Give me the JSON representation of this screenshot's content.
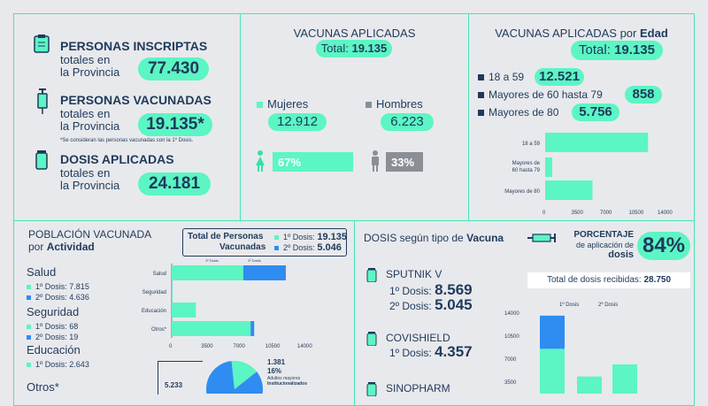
{
  "summary": {
    "inscriptas": {
      "title": "PERSONAS INSCRIPTAS",
      "sub1": "totales en",
      "sub2": "la Provincia",
      "value": "77.430"
    },
    "vacunadas": {
      "title": "PERSONAS VACUNADAS",
      "sub1": "totales en",
      "sub2": "la Provincia",
      "value": "19.135*",
      "note": "*Se consideran las personas vacunadas con la 1º Dosis."
    },
    "dosis": {
      "title": "DOSIS APLICADAS",
      "sub1": "totales en",
      "sub2": "la Provincia",
      "value": "24.181"
    }
  },
  "vacunas_aplicadas": {
    "title": "VACUNAS APLICADAS",
    "total_label": "Total:",
    "total_value": "19.135",
    "mujeres_label": "Mujeres",
    "mujeres_value": "12.912",
    "hombres_label": "Hombres",
    "hombres_value": "6.223",
    "mujeres_pct": 67,
    "mujeres_pct_label": "67%",
    "hombres_pct": 33,
    "hombres_pct_label": "33%"
  },
  "por_edad": {
    "title_a": "VACUNAS APLICADAS por ",
    "title_b": "Edad",
    "total_label": "Total:",
    "total_value": "19.135",
    "items": [
      {
        "label": "18 a 59",
        "value": "12.521"
      },
      {
        "label": "Mayores de 60 hasta 79",
        "value": "858"
      },
      {
        "label": "Mayores de 80",
        "value": "5.756"
      }
    ]
  },
  "poblacion": {
    "title_a": "POBLACIÓN VACUNADA",
    "title_b": "por ",
    "title_c": "Actividad",
    "total_box_l1": "Total de Personas",
    "total_box_l2": "Vacunadas",
    "d1_label": "1º Dosis:",
    "d1_value": "19.135",
    "d2_label": "2º Dosis:",
    "d2_value": "5.046",
    "groups": [
      {
        "name": "Salud",
        "d1": "1º Dosis: 7.815",
        "d2": "2º Dosis: 4.636"
      },
      {
        "name": "Seguridad",
        "d1": "1º Dosis: 68",
        "d2": "2º Dosis: 19"
      },
      {
        "name": "Educación",
        "d1": "1º Dosis: 2.643",
        "d2": ""
      },
      {
        "name": "Otros*",
        "d1": "",
        "d2": ""
      }
    ],
    "pie_labels": {
      "a": "1.381",
      "b": "16%",
      "c": "Adultos mayores",
      "d": "Institucionalizados",
      "e": "5.233"
    }
  },
  "dosis_tipo": {
    "title_a": "DOSIS según tipo de ",
    "title_b": "Vacuna",
    "pct_l1": "PORCENTAJE",
    "pct_l2": "de aplicación de",
    "pct_l3": "dosis",
    "pct_value": "84%",
    "recibidas_label": "Total de dosis recibidas:",
    "recibidas_value": "28.750",
    "vaccines": [
      {
        "name": "SPUTNIK V",
        "d1_label": "1º Dosis:",
        "d1": "8.569",
        "d2_label": "2º Dosis:",
        "d2": "5.045"
      },
      {
        "name": "COVISHIELD",
        "d1_label": "1º Dosis:",
        "d1": "4.357",
        "d2_label": "",
        "d2": ""
      },
      {
        "name": "SINOPHARM",
        "d1_label": "",
        "d1": "",
        "d2_label": "",
        "d2": ""
      }
    ]
  },
  "chart_data": [
    {
      "type": "bar",
      "orientation": "horizontal",
      "categories": [
        "18 a 59",
        "Mayores de 60 hasta 79",
        "Mayores de 80"
      ],
      "values": [
        12521,
        858,
        5756
      ],
      "xlim": [
        0,
        14000
      ],
      "ticks": [
        "0",
        "3500",
        "7000",
        "10500",
        "14000"
      ],
      "color": "#5cf5c4"
    },
    {
      "type": "bar",
      "orientation": "horizontal",
      "stacked": true,
      "categories": [
        "Salud",
        "Seguridad",
        "Educación",
        "Otros*"
      ],
      "series": [
        {
          "name": "1º Dosis",
          "values": [
            7815,
            68,
            2643,
            8609
          ],
          "color": "#5cf5c4"
        },
        {
          "name": "2º Dosis",
          "values": [
            4636,
            19,
            0,
            391
          ],
          "color": "#2f8cf0"
        }
      ],
      "xlim": [
        0,
        14000
      ],
      "ticks": [
        "0",
        "3500",
        "7000",
        "10500",
        "14000"
      ]
    },
    {
      "type": "bar",
      "stacked": true,
      "categories": [
        "SPUTNIK V",
        "COVISHIELD",
        "SINOPHARM"
      ],
      "series": [
        {
          "name": "1º Dosis",
          "values": [
            8569,
            4357,
            6200
          ],
          "color": "#5cf5c4"
        },
        {
          "name": "2º Dosis",
          "values": [
            5045,
            0,
            0
          ],
          "color": "#2f8cf0"
        }
      ],
      "ylim": [
        0,
        14000
      ],
      "ticks": [
        "14000",
        "10500",
        "7000",
        "3500"
      ]
    },
    {
      "type": "pie",
      "slices": [
        {
          "value": 84,
          "color": "#2f8cf0"
        },
        {
          "value": 16,
          "color": "#5cf5c4"
        }
      ]
    }
  ]
}
